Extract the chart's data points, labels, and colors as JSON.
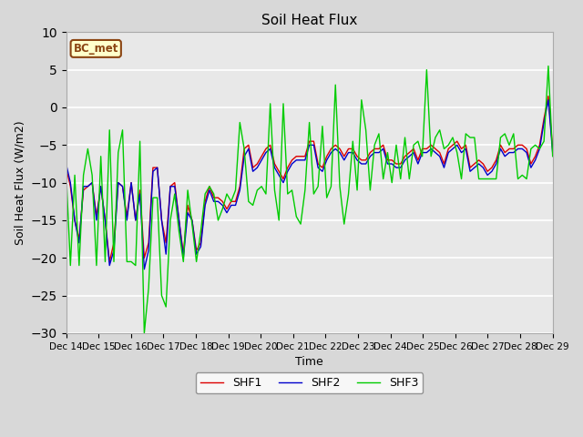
{
  "title": "Soil Heat Flux",
  "xlabel": "Time",
  "ylabel": "Soil Heat Flux (W/m2)",
  "ylim": [
    -30,
    10
  ],
  "yticks": [
    -30,
    -25,
    -20,
    -15,
    -10,
    -5,
    0,
    5,
    10
  ],
  "xtick_labels": [
    "Dec 14",
    "Dec 15",
    "Dec 16",
    "Dec 17",
    "Dec 18",
    "Dec 19",
    "Dec 20",
    "Dec 21",
    "Dec 22",
    "Dec 23",
    "Dec 24",
    "Dec 25",
    "Dec 26",
    "Dec 27",
    "Dec 28",
    "Dec 29"
  ],
  "annotation_text": "BC_met",
  "annotation_bg": "#ffffcc",
  "annotation_border": "#8B4513",
  "colors": {
    "SHF1": "#dd0000",
    "SHF2": "#0000cc",
    "SHF3": "#00cc00"
  },
  "fig_bg": "#d8d8d8",
  "plot_bg": "#e8e8e8",
  "SHF1": [
    -8.0,
    -10.5,
    -15.0,
    -17.5,
    -11.0,
    -10.5,
    -10.0,
    -14.5,
    -10.5,
    -15.0,
    -20.5,
    -18.0,
    -10.0,
    -10.5,
    -14.5,
    -10.0,
    -15.0,
    -11.0,
    -20.0,
    -18.0,
    -8.0,
    -8.0,
    -15.0,
    -18.0,
    -10.5,
    -10.0,
    -15.0,
    -19.5,
    -13.0,
    -15.0,
    -19.0,
    -18.0,
    -12.5,
    -10.5,
    -12.0,
    -12.0,
    -12.5,
    -13.5,
    -12.5,
    -12.5,
    -10.5,
    -5.5,
    -5.0,
    -8.0,
    -7.5,
    -6.5,
    -5.5,
    -5.0,
    -7.5,
    -8.5,
    -9.5,
    -8.0,
    -7.0,
    -6.5,
    -6.5,
    -6.5,
    -4.5,
    -4.5,
    -7.5,
    -8.0,
    -6.5,
    -5.5,
    -5.0,
    -5.5,
    -6.5,
    -5.5,
    -5.5,
    -6.5,
    -7.0,
    -7.0,
    -6.0,
    -5.5,
    -5.5,
    -5.0,
    -7.0,
    -7.0,
    -7.5,
    -7.5,
    -6.5,
    -6.0,
    -5.5,
    -7.0,
    -5.5,
    -5.5,
    -5.0,
    -5.5,
    -6.0,
    -7.5,
    -5.5,
    -5.0,
    -4.5,
    -5.5,
    -5.0,
    -8.0,
    -7.5,
    -7.0,
    -7.5,
    -8.5,
    -8.0,
    -7.0,
    -5.0,
    -6.0,
    -5.5,
    -5.5,
    -5.0,
    -5.0,
    -5.5,
    -7.5,
    -6.5,
    -5.0,
    -1.5,
    1.5,
    -5.5
  ],
  "SHF2": [
    -7.5,
    -10.0,
    -15.0,
    -18.0,
    -10.5,
    -10.5,
    -10.0,
    -15.0,
    -10.5,
    -15.0,
    -21.0,
    -19.0,
    -10.0,
    -10.5,
    -15.0,
    -10.0,
    -15.0,
    -11.5,
    -21.5,
    -19.0,
    -8.5,
    -8.0,
    -15.0,
    -19.5,
    -10.5,
    -10.5,
    -15.0,
    -20.0,
    -14.0,
    -15.0,
    -19.5,
    -18.5,
    -13.0,
    -11.0,
    -12.5,
    -12.5,
    -13.0,
    -14.0,
    -13.0,
    -13.0,
    -11.0,
    -6.5,
    -5.5,
    -8.5,
    -8.0,
    -7.0,
    -6.0,
    -5.5,
    -8.0,
    -9.0,
    -10.0,
    -8.5,
    -7.5,
    -7.0,
    -7.0,
    -7.0,
    -5.0,
    -5.0,
    -8.0,
    -8.5,
    -7.0,
    -6.0,
    -5.5,
    -6.0,
    -7.0,
    -6.0,
    -6.0,
    -7.0,
    -7.5,
    -7.5,
    -6.5,
    -6.0,
    -6.0,
    -5.5,
    -7.5,
    -7.5,
    -8.0,
    -8.0,
    -7.0,
    -6.5,
    -6.0,
    -7.5,
    -6.0,
    -6.0,
    -5.5,
    -6.0,
    -6.5,
    -8.0,
    -6.0,
    -5.5,
    -5.0,
    -6.0,
    -5.5,
    -8.5,
    -8.0,
    -7.5,
    -8.0,
    -9.0,
    -8.5,
    -7.5,
    -5.5,
    -6.5,
    -6.0,
    -6.0,
    -5.5,
    -5.5,
    -6.0,
    -8.0,
    -7.0,
    -5.5,
    -2.0,
    1.0,
    -6.0
  ],
  "SHF3": [
    -8.5,
    -21.0,
    -9.0,
    -21.0,
    -9.0,
    -5.5,
    -9.0,
    -21.0,
    -6.5,
    -20.5,
    -3.0,
    -20.5,
    -6.0,
    -3.0,
    -20.5,
    -20.5,
    -21.0,
    -4.5,
    -30.0,
    -24.0,
    -12.0,
    -12.0,
    -25.0,
    -26.5,
    -15.0,
    -11.5,
    -16.5,
    -20.5,
    -11.0,
    -15.5,
    -20.5,
    -16.5,
    -11.5,
    -10.5,
    -11.5,
    -15.0,
    -13.5,
    -11.5,
    -12.5,
    -11.0,
    -2.0,
    -5.5,
    -12.5,
    -13.0,
    -11.0,
    -10.5,
    -11.5,
    0.5,
    -11.0,
    -15.0,
    0.5,
    -11.5,
    -11.0,
    -14.5,
    -15.5,
    -11.0,
    -2.0,
    -11.5,
    -10.5,
    -2.5,
    -12.0,
    -10.5,
    3.0,
    -10.5,
    -15.5,
    -11.5,
    -4.5,
    -11.0,
    1.0,
    -3.0,
    -11.0,
    -5.0,
    -3.5,
    -9.5,
    -6.0,
    -10.0,
    -5.0,
    -9.5,
    -4.0,
    -9.5,
    -5.0,
    -4.5,
    -6.5,
    5.0,
    -6.5,
    -4.0,
    -3.0,
    -5.5,
    -5.0,
    -4.0,
    -6.0,
    -9.5,
    -3.5,
    -4.0,
    -4.0,
    -9.5,
    -9.5,
    -9.5,
    -9.5,
    -9.5,
    -4.0,
    -3.5,
    -5.0,
    -3.5,
    -9.5,
    -9.0,
    -9.5,
    -5.5,
    -5.0,
    -5.5,
    -4.5,
    5.5,
    -6.5
  ]
}
